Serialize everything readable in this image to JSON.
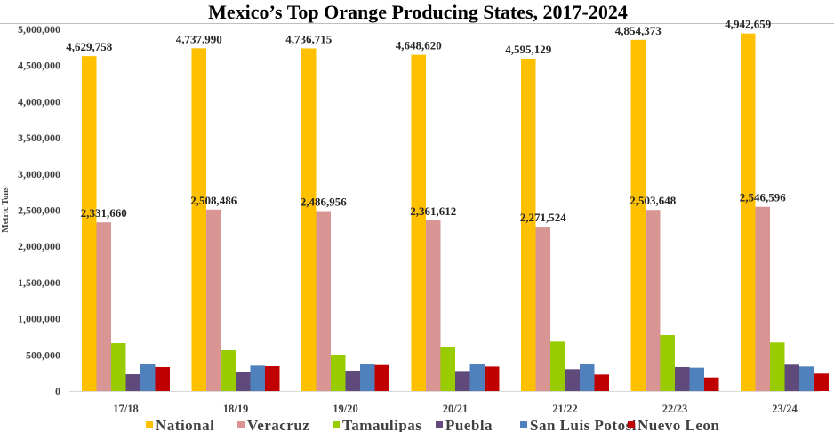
{
  "chart_data": {
    "type": "bar",
    "title": "Mexico’s Top Orange Producing States, 2017-2024",
    "xlabel": "",
    "ylabel": "Metric Tons",
    "ylim": [
      0,
      5000000
    ],
    "yticks": [
      0,
      500000,
      1000000,
      1500000,
      2000000,
      2500000,
      3000000,
      3500000,
      4000000,
      4500000,
      5000000
    ],
    "ytick_labels": [
      "0",
      "500,000",
      "1,000,000",
      "1,500,000",
      "2,000,000",
      "2,500,000",
      "3,000,000",
      "3,500,000",
      "4,000,000",
      "4,500,000",
      "5,000,000"
    ],
    "grid": false,
    "legend_position": "bottom",
    "categories": [
      "17/18",
      "18/19",
      "19/20",
      "20/21",
      "21/22",
      "22/23",
      "23/24"
    ],
    "series": [
      {
        "name": "National",
        "color": "#FFC000",
        "values": [
          4629758,
          4737990,
          4736715,
          4648620,
          4595129,
          4854373,
          4942659
        ],
        "labels": [
          "4,629,758",
          "4,737,990",
          "4,736,715",
          "4,648,620",
          "4,595,129",
          "4,854,373",
          "4,942,659"
        ]
      },
      {
        "name": "Veracruz",
        "color": "#D99594",
        "values": [
          2331660,
          2508486,
          2486956,
          2361612,
          2271524,
          2503648,
          2546596
        ],
        "labels": [
          "2,331,660",
          "2,508,486",
          "2,486,956",
          "2,361,612",
          "2,271,524",
          "2,503,648",
          "2,546,596"
        ]
      },
      {
        "name": "Tamaulipas",
        "color": "#99CC00",
        "values": [
          663000,
          565000,
          504000,
          614000,
          684000,
          774000,
          672000
        ]
      },
      {
        "name": "Puebla",
        "color": "#604A7B",
        "values": [
          233000,
          262000,
          283000,
          278000,
          303000,
          332000,
          365000
        ]
      },
      {
        "name": "San Luis Potosi",
        "color": "#4F81BD",
        "values": [
          369000,
          352000,
          369000,
          372000,
          369000,
          324000,
          340000
        ]
      },
      {
        "name": "Nuevo Leon",
        "color": "#C00000",
        "values": [
          332000,
          344000,
          360000,
          339000,
          229000,
          188000,
          242000
        ]
      }
    ]
  }
}
